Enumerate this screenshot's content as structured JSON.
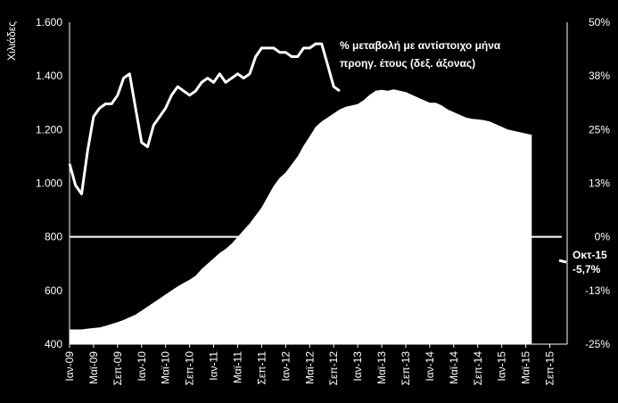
{
  "chart_data": {
    "type": "area",
    "background": "#000000",
    "foreground": "#ffffff",
    "ylabel_left": "Χιλιάδες",
    "left_axis": {
      "range": [
        400,
        1600
      ],
      "ticks": [
        "400",
        "600",
        "800",
        "1.000",
        "1.200",
        "1.400",
        "1.600"
      ],
      "tick_values": [
        400,
        600,
        800,
        1000,
        1200,
        1400,
        1600
      ]
    },
    "right_axis": {
      "range": [
        -25,
        50
      ],
      "ticks": [
        "-25%",
        "-13%",
        "0%",
        "13%",
        "25%",
        "38%",
        "50%"
      ],
      "tick_values": [
        -25,
        -12.5,
        0,
        12.5,
        25,
        37.5,
        50
      ]
    },
    "x_ticks": [
      "Ιαν-09",
      "Μαϊ-09",
      "Σεπ-09",
      "Ιαν-10",
      "Μαϊ-10",
      "Σεπ-10",
      "Ιαν-11",
      "Μαϊ-11",
      "Σεπ-11",
      "Ιαν-12",
      "Μαϊ-12",
      "Σεπ-12",
      "Ιαν-13",
      "Μαϊ-13",
      "Σεπ-13",
      "Ιαν-14",
      "Μαϊ-14",
      "Σεπ-14",
      "Ιαν-15",
      "Μαϊ-15",
      "Σεπ-15"
    ],
    "annotation_line": [
      "% μεταβολή με αντίστοιχο μήνα",
      "προηγ. έτους (δεξ. άξονας)"
    ],
    "end_label": [
      "Οκτ-15",
      "-5,7%"
    ],
    "area_series": {
      "axis": "left",
      "values": [
        455,
        455,
        455,
        458,
        460,
        462,
        468,
        475,
        482,
        490,
        500,
        510,
        525,
        540,
        555,
        570,
        585,
        600,
        615,
        628,
        640,
        655,
        680,
        700,
        720,
        740,
        755,
        775,
        800,
        825,
        850,
        880,
        910,
        950,
        990,
        1020,
        1040,
        1070,
        1100,
        1140,
        1175,
        1210,
        1230,
        1245,
        1260,
        1275,
        1285,
        1290,
        1295,
        1310,
        1330,
        1345,
        1348,
        1345,
        1350,
        1345,
        1340,
        1330,
        1320,
        1310,
        1300,
        1300,
        1290,
        1275,
        1265,
        1255,
        1245,
        1240,
        1238,
        1235,
        1230,
        1220,
        1210,
        1200,
        1195,
        1190,
        1185,
        1180
      ]
    },
    "line_series": {
      "axis": "right",
      "values": [
        17,
        12,
        10,
        20,
        28,
        30,
        31,
        31,
        33,
        37,
        38,
        30,
        22,
        21,
        26,
        28,
        30,
        33,
        35,
        34,
        33,
        34,
        36,
        37,
        36,
        38,
        36,
        37,
        38,
        37,
        38,
        42,
        44,
        44,
        44,
        43,
        43,
        42,
        42,
        44,
        44,
        45,
        45,
        40,
        35,
        34
      ]
    }
  }
}
